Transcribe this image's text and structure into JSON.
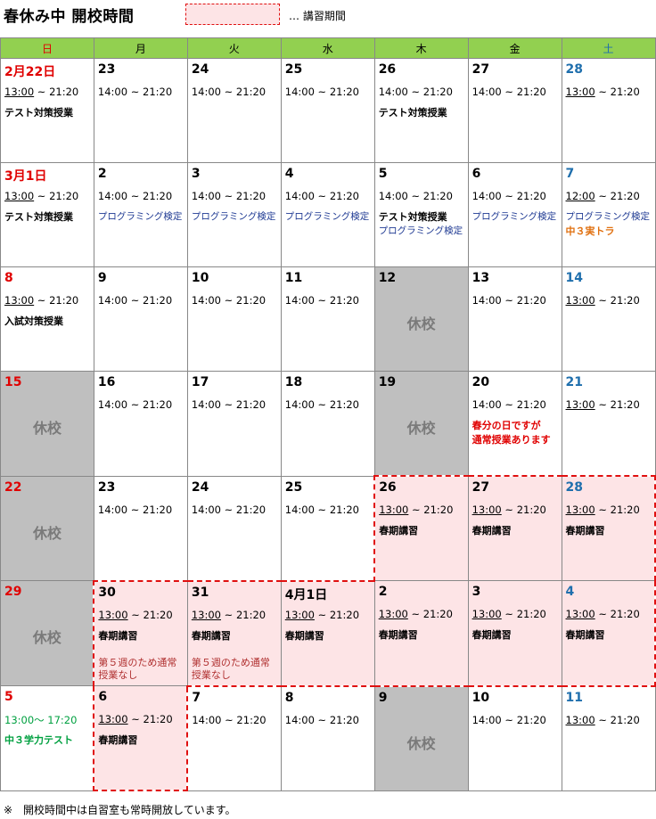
{
  "header": {
    "title": "春休み中 開校時間",
    "legend": "… 講習期間"
  },
  "weekdays": [
    "日",
    "月",
    "火",
    "水",
    "木",
    "金",
    "土"
  ],
  "weeks": [
    [
      {
        "day": "2月22日",
        "color": "red",
        "hours": "13:00 ~ 21:20",
        "hoursUnderline": true,
        "notes": [
          "テスト対策授業"
        ]
      },
      {
        "day": "23",
        "hours": "14:00 ~ 21:20",
        "notes": []
      },
      {
        "day": "24",
        "hours": "14:00 ~ 21:20",
        "notes": []
      },
      {
        "day": "25",
        "hours": "14:00 ~ 21:20",
        "notes": []
      },
      {
        "day": "26",
        "hours": "14:00 ~ 21:20",
        "notes": [
          "テスト対策授業"
        ]
      },
      {
        "day": "27",
        "hours": "14:00 ~ 21:20",
        "notes": []
      },
      {
        "day": "28",
        "color": "blue",
        "hours": "13:00 ~ 21:20",
        "hoursUnderline": true,
        "notes": []
      }
    ],
    [
      {
        "day": "3月1日",
        "color": "red",
        "hours": "13:00 ~ 21:20",
        "hoursUnderline": true,
        "notes": [
          "テスト対策授業"
        ]
      },
      {
        "day": "2",
        "hours": "14:00 ~ 21:20",
        "notes": [
          "プログラミング検定"
        ],
        "noteStyle": [
          "navy"
        ]
      },
      {
        "day": "3",
        "hours": "14:00 ~ 21:20",
        "notes": [
          "プログラミング検定"
        ],
        "noteStyle": [
          "navy"
        ]
      },
      {
        "day": "4",
        "hours": "14:00 ~ 21:20",
        "notes": [
          "プログラミング検定"
        ],
        "noteStyle": [
          "navy"
        ]
      },
      {
        "day": "5",
        "hours": "14:00 ~ 21:20",
        "notes": [
          "テスト対策授業",
          "プログラミング検定"
        ],
        "noteStyle": [
          "",
          "navy"
        ]
      },
      {
        "day": "6",
        "hours": "14:00 ~ 21:20",
        "notes": [
          "プログラミング検定"
        ],
        "noteStyle": [
          "navy"
        ]
      },
      {
        "day": "7",
        "color": "blue",
        "hours": "12:00 ~ 21:20",
        "hoursUnderline": true,
        "notes": [
          "プログラミング検定",
          "中３実トラ"
        ],
        "noteStyle": [
          "navy",
          "orange"
        ]
      }
    ],
    [
      {
        "day": "8",
        "color": "red",
        "hours": "13:00 ~ 21:20",
        "hoursUnderline": true,
        "notes": [
          "入試対策授業"
        ]
      },
      {
        "day": "9",
        "hours": "14:00 ~ 21:20",
        "notes": []
      },
      {
        "day": "10",
        "hours": "14:00 ~ 21:20",
        "notes": []
      },
      {
        "day": "11",
        "hours": "14:00 ~ 21:20",
        "notes": []
      },
      {
        "day": "12",
        "closed": true,
        "closedLabel": "休校"
      },
      {
        "day": "13",
        "hours": "14:00 ~ 21:20",
        "notes": []
      },
      {
        "day": "14",
        "color": "blue",
        "hours": "13:00 ~ 21:20",
        "hoursUnderline": true,
        "notes": []
      }
    ],
    [
      {
        "day": "15",
        "color": "red",
        "closed": true,
        "closedLabel": "休校"
      },
      {
        "day": "16",
        "hours": "14:00 ~ 21:20",
        "notes": []
      },
      {
        "day": "17",
        "hours": "14:00 ~ 21:20",
        "notes": []
      },
      {
        "day": "18",
        "hours": "14:00 ~ 21:20",
        "notes": []
      },
      {
        "day": "19",
        "closed": true,
        "closedLabel": "休校"
      },
      {
        "day": "20",
        "hours": "14:00 ~ 21:20",
        "notes": [
          "春分の日ですが",
          "通常授業あります"
        ],
        "noteStyle": [
          "redb",
          "redb"
        ]
      },
      {
        "day": "21",
        "color": "blue",
        "hours": "13:00 ~ 21:20",
        "hoursUnderline": true,
        "notes": []
      }
    ],
    [
      {
        "day": "22",
        "color": "red",
        "closed": true,
        "closedLabel": "休校"
      },
      {
        "day": "23",
        "hours": "14:00 ~ 21:20",
        "notes": []
      },
      {
        "day": "24",
        "hours": "14:00 ~ 21:20",
        "notes": []
      },
      {
        "day": "25",
        "hours": "14:00 ~ 21:20",
        "notes": []
      },
      {
        "day": "26",
        "spring": true,
        "hours": "13:00 ~ 21:20",
        "hoursUnderline": true,
        "notes": [
          "春期講習"
        ]
      },
      {
        "day": "27",
        "spring": true,
        "hours": "13:00 ~ 21:20",
        "hoursUnderline": true,
        "notes": [
          "春期講習"
        ]
      },
      {
        "day": "28",
        "color": "blue",
        "spring": true,
        "hours": "13:00 ~ 21:20",
        "hoursUnderline": true,
        "notes": [
          "春期講習"
        ]
      }
    ],
    [
      {
        "day": "29",
        "color": "red",
        "closed": true,
        "closedLabel": "休校"
      },
      {
        "day": "30",
        "spring": true,
        "hours": "13:00 ~ 21:20",
        "hoursUnderline": true,
        "notes": [
          "春期講習"
        ],
        "extra": [
          "第５週のため通常",
          "授業なし"
        ]
      },
      {
        "day": "31",
        "spring": true,
        "hours": "13:00 ~ 21:20",
        "hoursUnderline": true,
        "notes": [
          "春期講習"
        ],
        "extra": [
          "第５週のため通常",
          "授業なし"
        ]
      },
      {
        "day": "4月1日",
        "spring": true,
        "hours": "13:00 ~ 21:20",
        "hoursUnderline": true,
        "notes": [
          "春期講習"
        ]
      },
      {
        "day": "2",
        "spring": true,
        "hours": "13:00 ~ 21:20",
        "hoursUnderline": true,
        "notes": [
          "春期講習"
        ]
      },
      {
        "day": "3",
        "spring": true,
        "hours": "13:00 ~ 21:20",
        "hoursUnderline": true,
        "notes": [
          "春期講習"
        ]
      },
      {
        "day": "4",
        "color": "blue",
        "spring": true,
        "hours": "13:00 ~ 21:20",
        "hoursUnderline": true,
        "notes": [
          "春期講習"
        ]
      }
    ],
    [
      {
        "day": "5",
        "color": "red",
        "hours": "13:00〜 17:20",
        "hoursGreen": true,
        "notes": [
          "中３学力テスト"
        ],
        "noteStyle": [
          "green"
        ]
      },
      {
        "day": "6",
        "spring": true,
        "hours": "13:00 ~ 21:20",
        "hoursUnderline": true,
        "notes": [
          "春期講習"
        ]
      },
      {
        "day": "7",
        "hours": "14:00 ~ 21:20",
        "notes": []
      },
      {
        "day": "8",
        "hours": "14:00 ~ 21:20",
        "notes": []
      },
      {
        "day": "9",
        "closed": true,
        "closedLabel": "休校"
      },
      {
        "day": "10",
        "hours": "14:00 ~ 21:20",
        "notes": []
      },
      {
        "day": "11",
        "color": "blue",
        "hours": "13:00 ~ 21:20",
        "hoursUnderline": true,
        "notes": []
      }
    ]
  ],
  "footer": "※　開校時間中は自習室も常時開放しています。",
  "colors": {
    "header_bg": "#92d050",
    "closed_bg": "#bfbfbf",
    "spring_bg": "#fde4e6",
    "sunday": "#e00000",
    "saturday": "#1f6fad",
    "spring_border": "#e01010"
  }
}
